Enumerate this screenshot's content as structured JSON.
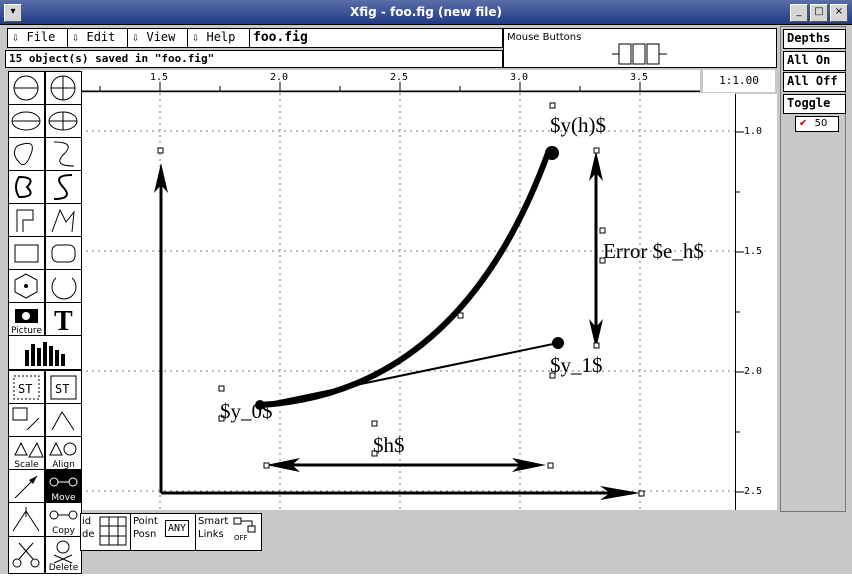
{
  "window": {
    "title": "Xfig - foo.fig (new file)",
    "menu_icon": "window-menu-icon",
    "controls": [
      "minimize-icon",
      "maximize-icon",
      "close-icon"
    ]
  },
  "menubar": {
    "items": [
      {
        "label": "File"
      },
      {
        "label": "Edit"
      },
      {
        "label": "View"
      },
      {
        "label": "Help"
      }
    ],
    "arrow_icon": "down-arrow-icon"
  },
  "filename": "foo.fig",
  "status_message": "15 object(s) saved in \"foo.fig\"",
  "mouse_buttons_label": "Mouse Buttons",
  "depths_panel": {
    "title": "Depths",
    "all_on": "All On",
    "all_off": "All Off",
    "toggle": "Toggle",
    "layers": [
      {
        "depth": "50",
        "checked": true
      }
    ]
  },
  "zoom_label": "1:1.00",
  "top_ruler_labels": [
    "1.5",
    "2.0",
    "2.5",
    "3.0",
    "3.5"
  ],
  "right_ruler_labels": [
    "1.0",
    "1.5",
    "2.0",
    "2.5"
  ],
  "tools": {
    "picture_label": "Picture",
    "scale_label": "Scale",
    "align_label": "Align",
    "move_label": "Move",
    "copy_label": "Copy",
    "delete_label": "Delete"
  },
  "bottom_bar": {
    "grid_label_1": "id",
    "grid_label_2": "de",
    "point_posn_1": "Point",
    "point_posn_2": "Posn",
    "point_posn_value": "ANY",
    "smart_links_1": "Smart",
    "smart_links_2": "Links",
    "smart_links_value": "OFF"
  },
  "canvas": {
    "text_yh": "$y(h)$",
    "text_error": "Error $e_h$",
    "text_y1": "$y_1$",
    "text_y0": "$y_0$",
    "text_h": "$h$"
  },
  "colors": {
    "title_bar": "#1f3a86",
    "panel_bg": "#c8c8c8",
    "check": "#cc0000"
  }
}
